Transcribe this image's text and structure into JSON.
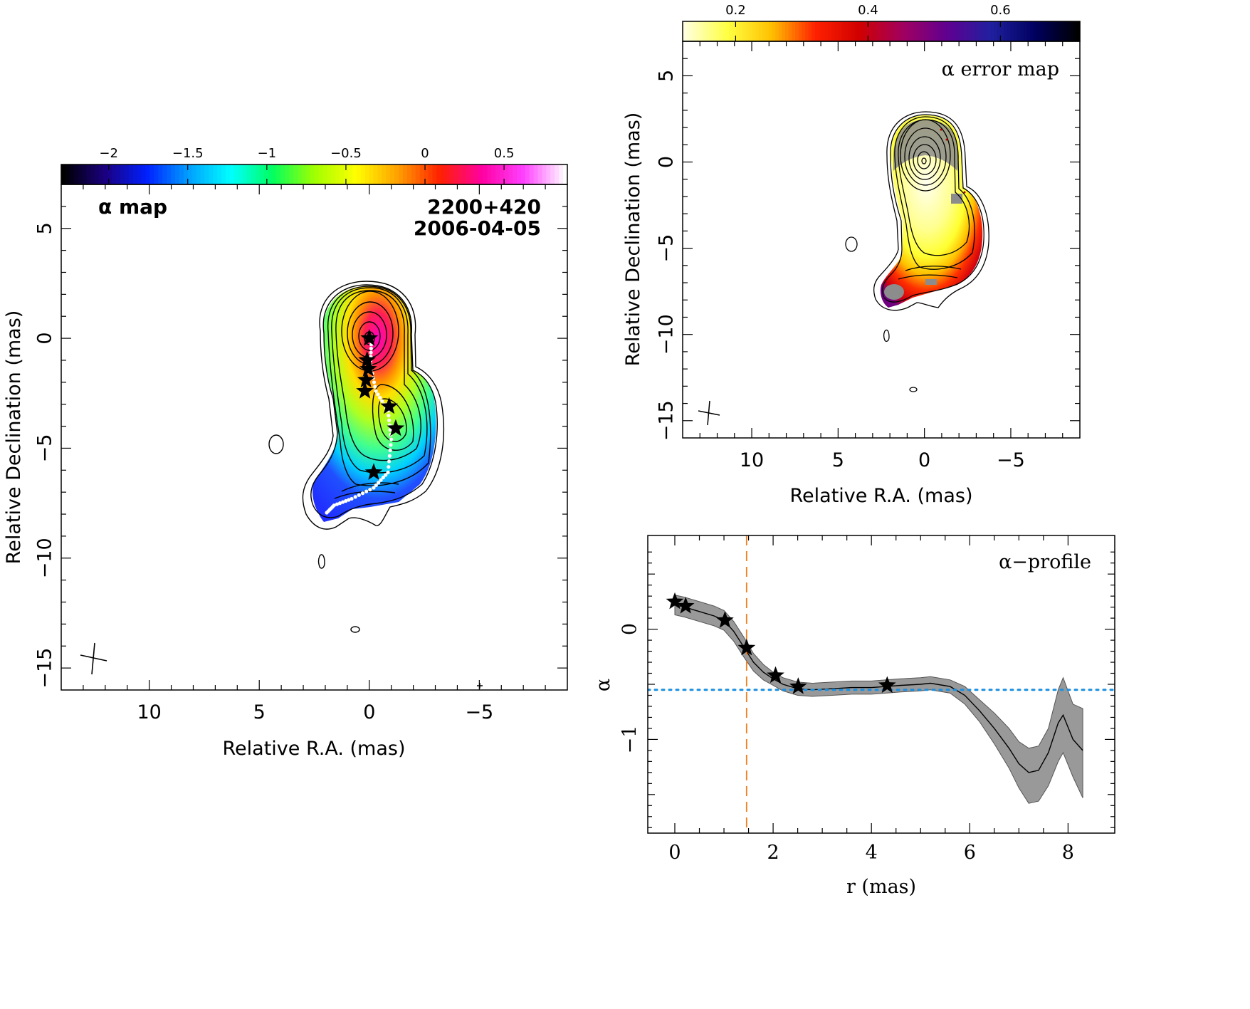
{
  "chart_data": [
    {
      "type": "heatmap",
      "title": "α map",
      "source": "2200+420",
      "date": "2006-04-05",
      "xlabel": "Relative R.A. (mas)",
      "ylabel": "Relative Declination (mas)",
      "xlim": [
        14,
        -9
      ],
      "ylim": [
        -16,
        7
      ],
      "xticks": [
        "10",
        "5",
        "0",
        "−5"
      ],
      "yticks": [
        "5",
        "0",
        "−5",
        "−10",
        "−15"
      ],
      "colorbar": {
        "ticks": [
          "−2",
          "−1.5",
          "−1",
          "−0.5",
          "0",
          "0.5"
        ],
        "range": [
          -2.3,
          0.9
        ],
        "colors": [
          "#000000",
          "#1a0080",
          "#0020ff",
          "#00a0ff",
          "#00ffff",
          "#00ff60",
          "#a0ff00",
          "#ffff00",
          "#ffa000",
          "#ff2000",
          "#ff00a0",
          "#ff40ff",
          "#ffffff"
        ]
      },
      "stars": [
        [
          0.0,
          0.0
        ],
        [
          0.1,
          -1.0
        ],
        [
          0.05,
          -1.4
        ],
        [
          0.15,
          -1.9
        ],
        [
          0.2,
          -2.4
        ],
        [
          -0.9,
          -3.1
        ],
        [
          -1.2,
          -4.1
        ],
        [
          -0.2,
          -6.1
        ]
      ],
      "ridge": [
        [
          -0.1,
          -0.1
        ],
        [
          -0.05,
          -1.2
        ],
        [
          -0.3,
          -2.4
        ],
        [
          -0.85,
          -3.3
        ],
        [
          -1.0,
          -4.6
        ],
        [
          -0.85,
          -6.1
        ],
        [
          -0.2,
          -6.8
        ],
        [
          0.8,
          -7.3
        ],
        [
          1.6,
          -7.6
        ],
        [
          2.0,
          -8.0
        ]
      ]
    },
    {
      "type": "heatmap",
      "title": "α error map",
      "xlabel": "Relative R.A. (mas)",
      "ylabel": "Relative Declination (mas)",
      "xlim": [
        14,
        -9
      ],
      "ylim": [
        -16,
        7
      ],
      "xticks": [
        "10",
        "5",
        "0",
        "−5"
      ],
      "yticks": [
        "5",
        "0",
        "−5",
        "−10",
        "−15"
      ],
      "colorbar": {
        "ticks": [
          "0.2",
          "0.4",
          "0.6"
        ],
        "range": [
          0.12,
          0.72
        ],
        "colors": [
          "#ffffe0",
          "#ffff40",
          "#ffc000",
          "#ff2000",
          "#d00000",
          "#a00060",
          "#600090",
          "#2020a0",
          "#000060",
          "#000000"
        ]
      }
    },
    {
      "type": "line",
      "title": "α−profile",
      "xlabel": "r (mas)",
      "ylabel": "α",
      "xlim": [
        -0.55,
        8.95
      ],
      "ylim": [
        -1.85,
        0.85
      ],
      "xticks": [
        "0",
        "2",
        "4",
        "6",
        "8"
      ],
      "yticks": [
        "0",
        "−1"
      ],
      "series": [
        {
          "x": [
            0.0,
            0.2,
            0.5,
            0.8,
            1.0,
            1.2,
            1.4,
            1.6,
            1.8,
            2.0,
            2.2,
            2.5,
            2.8,
            3.2,
            3.6,
            4.0,
            4.3,
            4.6,
            5.0,
            5.2,
            5.6,
            5.9,
            6.2,
            6.5,
            6.8,
            7.0,
            7.2,
            7.4,
            7.6,
            7.8,
            7.9,
            8.1,
            8.3
          ],
          "values": [
            0.22,
            0.2,
            0.16,
            0.12,
            0.08,
            -0.02,
            -0.16,
            -0.3,
            -0.39,
            -0.45,
            -0.5,
            -0.54,
            -0.55,
            -0.54,
            -0.53,
            -0.53,
            -0.52,
            -0.51,
            -0.5,
            -0.49,
            -0.52,
            -0.6,
            -0.74,
            -0.9,
            -1.08,
            -1.22,
            -1.3,
            -1.28,
            -1.12,
            -0.85,
            -0.78,
            -1.0,
            -1.1
          ],
          "lower": [
            0.13,
            0.11,
            0.07,
            0.03,
            -0.01,
            -0.11,
            -0.25,
            -0.38,
            -0.46,
            -0.51,
            -0.56,
            -0.6,
            -0.61,
            -0.6,
            -0.59,
            -0.59,
            -0.58,
            -0.57,
            -0.56,
            -0.55,
            -0.58,
            -0.68,
            -0.84,
            -1.04,
            -1.26,
            -1.44,
            -1.58,
            -1.56,
            -1.42,
            -1.2,
            -1.12,
            -1.34,
            -1.53
          ],
          "upper": [
            0.31,
            0.29,
            0.25,
            0.21,
            0.17,
            0.07,
            -0.07,
            -0.22,
            -0.32,
            -0.39,
            -0.44,
            -0.48,
            -0.49,
            -0.48,
            -0.47,
            -0.47,
            -0.46,
            -0.45,
            -0.44,
            -0.43,
            -0.46,
            -0.52,
            -0.64,
            -0.76,
            -0.9,
            -1.02,
            -1.08,
            -1.06,
            -0.9,
            -0.55,
            -0.44,
            -0.68,
            -0.72
          ]
        }
      ],
      "stars": [
        [
          0.0,
          0.25
        ],
        [
          0.22,
          0.21
        ],
        [
          1.02,
          0.08
        ],
        [
          1.46,
          -0.17
        ],
        [
          2.05,
          -0.42
        ],
        [
          2.51,
          -0.52
        ],
        [
          4.32,
          -0.51
        ]
      ],
      "hline": -0.55,
      "vline": 1.46
    }
  ]
}
